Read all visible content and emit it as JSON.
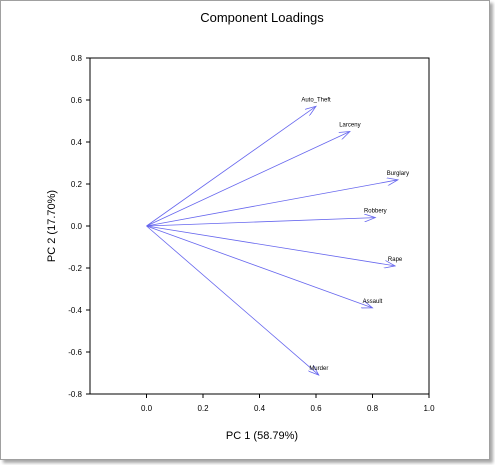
{
  "chart_data": {
    "type": "scatter",
    "title": "Component Loadings",
    "xlabel": "PC 1 (58.79%)",
    "ylabel": "PC 2 (17.70%)",
    "xlim": [
      -0.2,
      1.0
    ],
    "ylim": [
      -0.8,
      0.8
    ],
    "xticks": [
      "0.0",
      "0.2",
      "0.4",
      "0.6",
      "0.8",
      "1.0"
    ],
    "yticks": [
      "0.8",
      "0.6",
      "0.4",
      "0.2",
      "0.0",
      "-0.2",
      "-0.4",
      "-0.6",
      "-0.8"
    ],
    "grid": false,
    "origin": [
      0,
      0
    ],
    "points": [
      {
        "label": "Auto_Theft",
        "x": 0.6,
        "y": 0.57
      },
      {
        "label": "Larceny",
        "x": 0.72,
        "y": 0.45
      },
      {
        "label": "Burglary",
        "x": 0.89,
        "y": 0.22
      },
      {
        "label": "Robbery",
        "x": 0.81,
        "y": 0.04
      },
      {
        "label": "Rape",
        "x": 0.88,
        "y": -0.19
      },
      {
        "label": "Assault",
        "x": 0.8,
        "y": -0.39
      },
      {
        "label": "Murder",
        "x": 0.61,
        "y": -0.71
      }
    ],
    "arrow_color": "#6666ee"
  }
}
